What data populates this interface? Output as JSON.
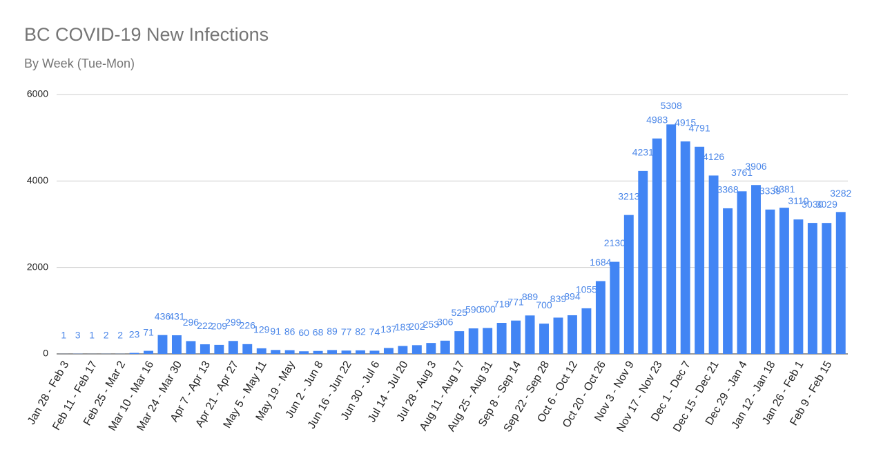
{
  "chart_data": {
    "type": "bar",
    "title": "BC COVID-19 New Infections",
    "subtitle": "By Week (Tue-Mon)",
    "categories": [
      "Jan 28 - Feb 3",
      null,
      "Feb 11 - Feb 17",
      null,
      "Feb 25 - Mar 2",
      null,
      "Mar 10 - Mar 16",
      null,
      "Mar 24 - Mar 30",
      null,
      "Apr 7 - Apr 13",
      null,
      "Apr 21 - Apr 27",
      null,
      "May 5 - May 11",
      null,
      "May 19 - May",
      null,
      "Jun 2 - Jun 8",
      null,
      "Jun 16 - Jun 22",
      null,
      "Jun 30 - Jul 6",
      null,
      "Jul 14 - Jul 20",
      null,
      "Jul 28 - Aug 3",
      null,
      "Aug 11 - Aug 17",
      null,
      "Aug 25 - Aug 31",
      null,
      "Sep 8 - Sep 14",
      null,
      "Sep 22 - Sep 28",
      null,
      "Oct 6 - Oct 12",
      null,
      "Oct 20 - Oct 26",
      null,
      "Nov 3 - Nov 9",
      null,
      "Nov 17 - Nov 23",
      null,
      "Dec 1 - Dec 7",
      null,
      "Dec 15 - Dec 21",
      null,
      "Dec 29 - Jan 4",
      null,
      "Jan 12 - Jan 18",
      null,
      "Jan 26 - Feb 1",
      null,
      "Feb 9 - Feb 15",
      null
    ],
    "values": [
      1,
      3,
      1,
      2,
      2,
      23,
      71,
      436,
      431,
      296,
      222,
      209,
      299,
      226,
      129,
      91,
      86,
      60,
      68,
      89,
      77,
      82,
      74,
      137,
      183,
      202,
      253,
      306,
      525,
      590,
      600,
      718,
      771,
      889,
      700,
      839,
      894,
      1055,
      1684,
      2130,
      3213,
      4231,
      4983,
      5308,
      4915,
      4791,
      4126,
      3368,
      3761,
      3906,
      3339,
      3381,
      3110,
      3030,
      3029,
      3282
    ],
    "color": "#4285f4",
    "ylim": [
      0,
      6000
    ],
    "yticks": [
      0,
      2000,
      4000,
      6000
    ],
    "grid": true
  }
}
